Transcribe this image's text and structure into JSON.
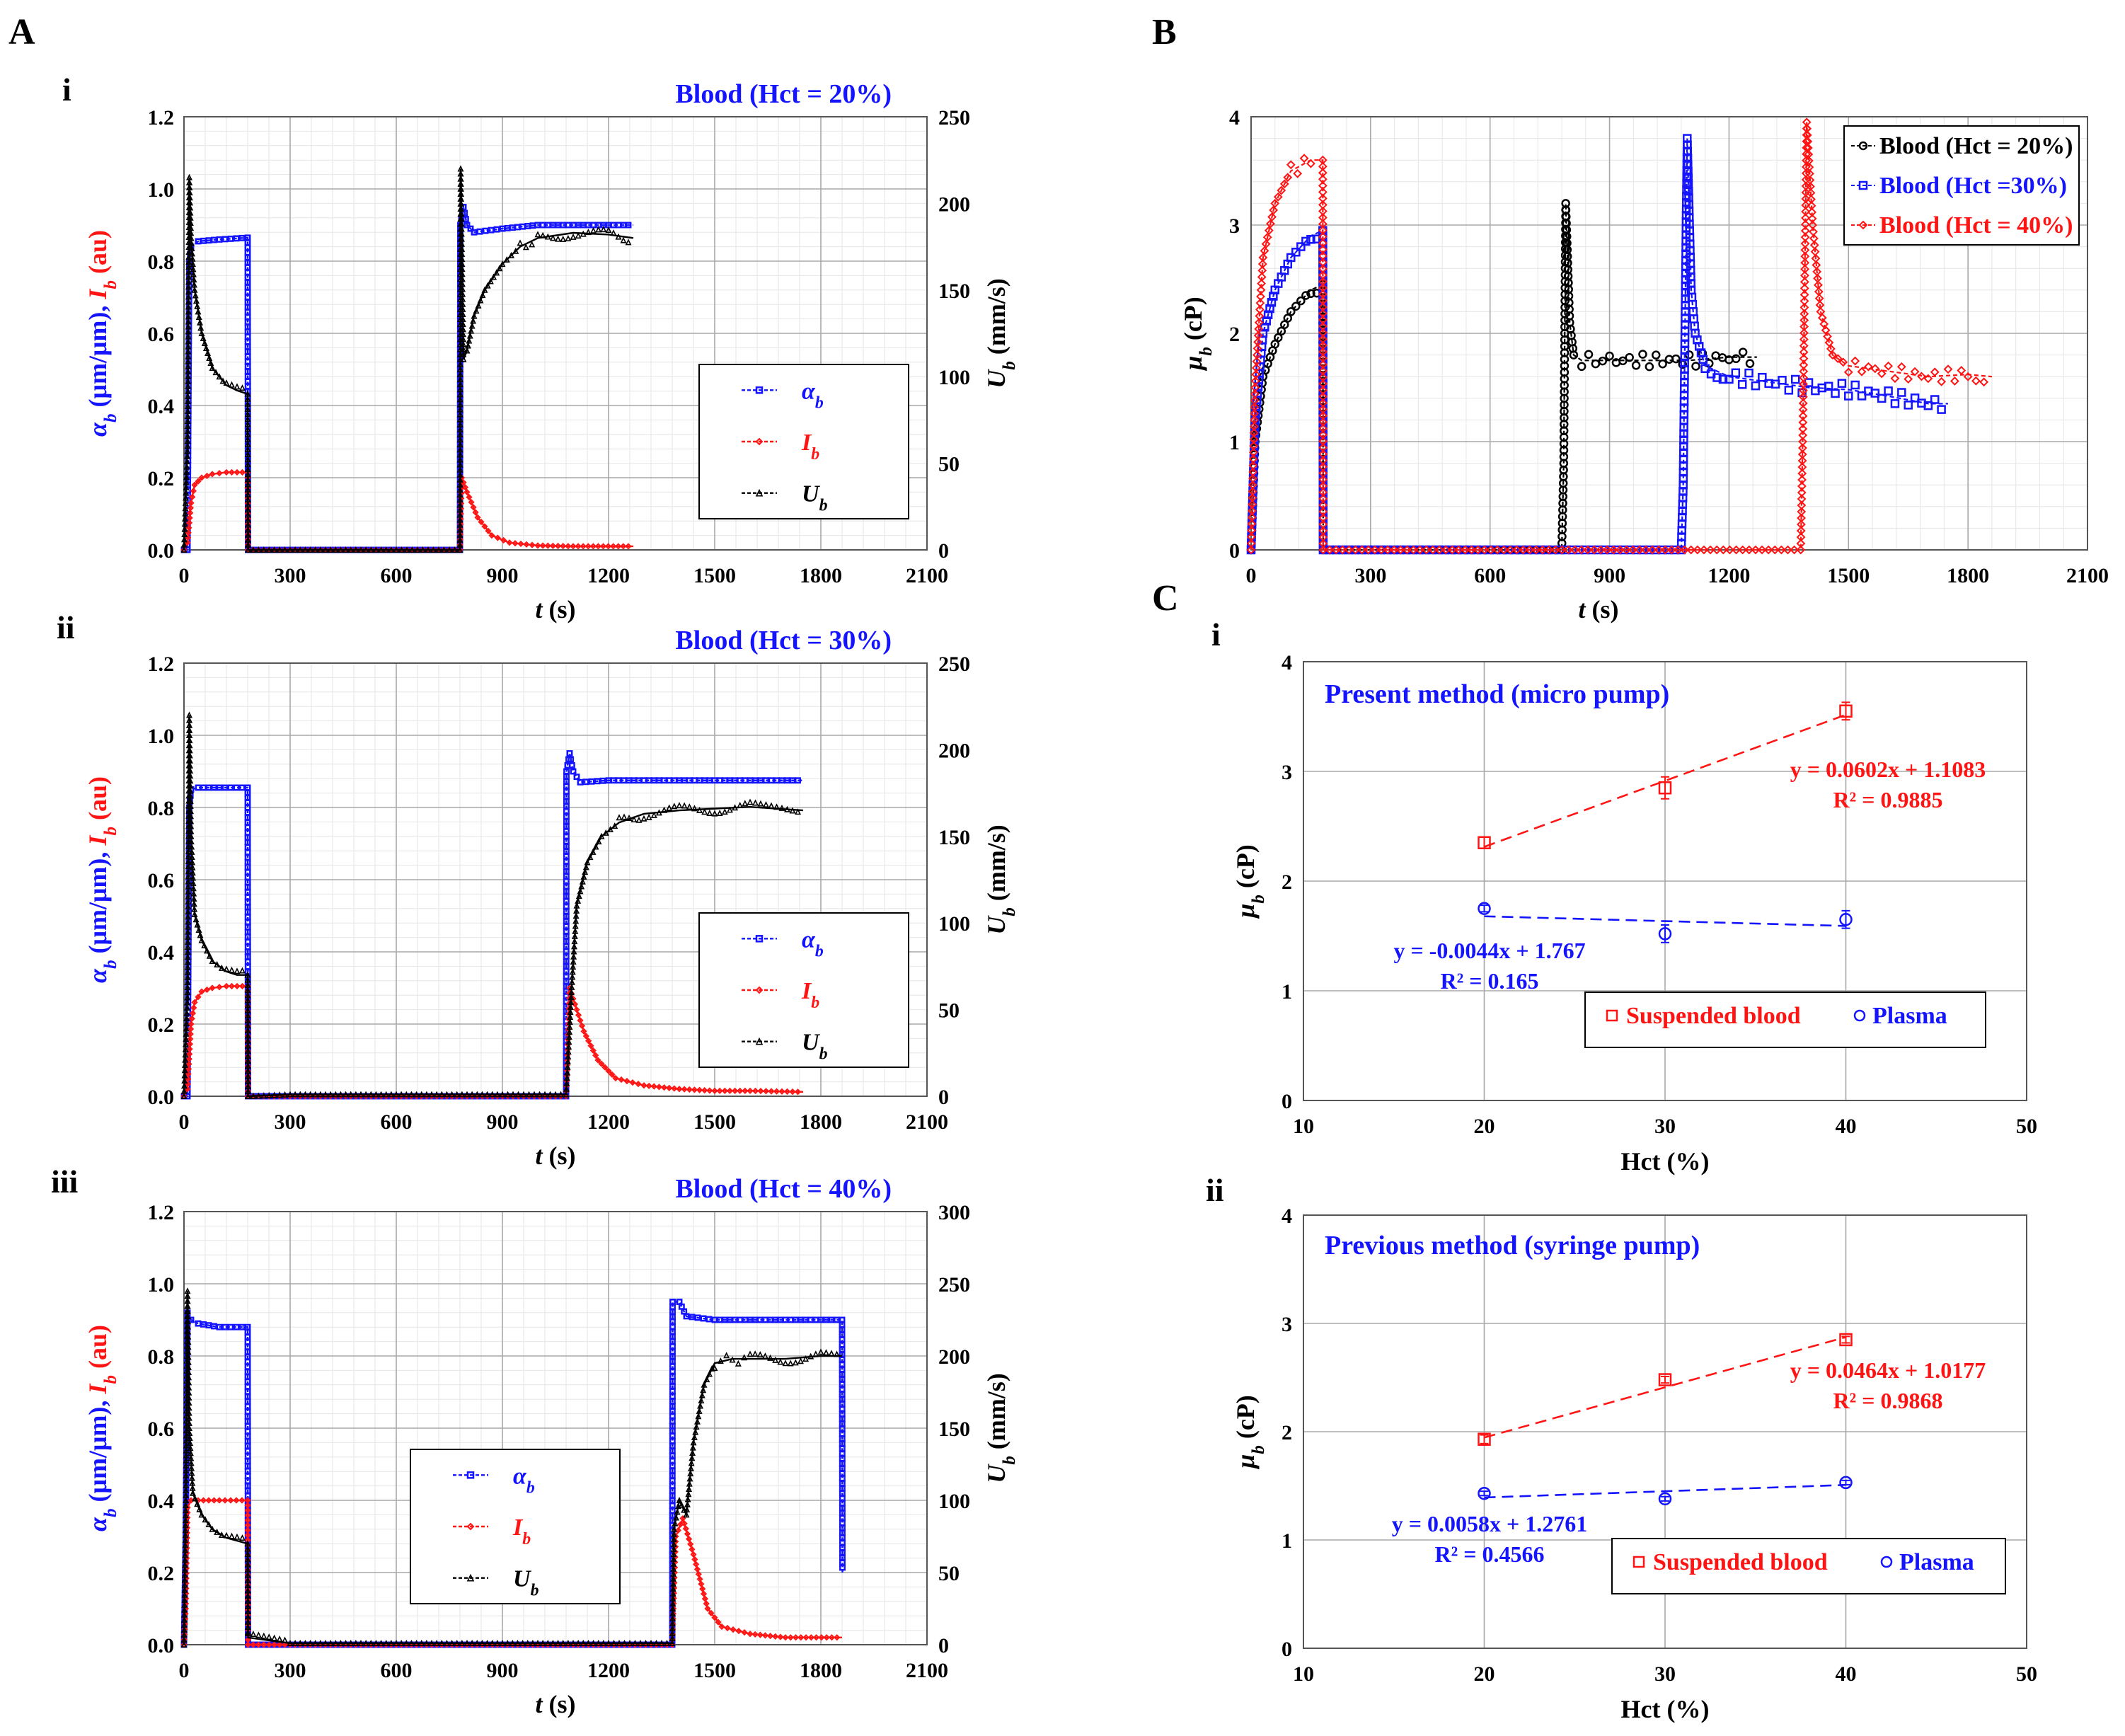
{
  "panel_letters": {
    "A": "A",
    "B": "B",
    "C": "C",
    "i": "i",
    "ii": "ii",
    "iii": "iii",
    "ci": "i",
    "cii": "ii"
  },
  "colors": {
    "blue": "#1414ff",
    "red": "#ff1414",
    "black": "#000000"
  },
  "chart_data": [
    {
      "id": "Ai",
      "type": "line",
      "title": "Blood (Hct = 20%)",
      "xlabel": "t (s)",
      "ylabel_left": "αb (μm/μm), Ib (au)",
      "ylabel_right": "Ub (mm/s)",
      "xlim": [
        0,
        2100
      ],
      "ylim_left": [
        0,
        1.2
      ],
      "ylim_right": [
        0,
        250
      ],
      "xticks": [
        "0",
        "300",
        "600",
        "900",
        "1200",
        "1500",
        "1800",
        "2100"
      ],
      "yticks_left": [
        "0.0",
        "0.2",
        "0.4",
        "0.6",
        "0.8",
        "1.0",
        "1.2"
      ],
      "yticks_right": [
        "0",
        "50",
        "100",
        "150",
        "200",
        "250"
      ],
      "legend": [
        "ab",
        "Ib",
        "Ub"
      ],
      "legend_loc": "center-right",
      "series": [
        {
          "name": "ab",
          "axis": "left",
          "color": "blue",
          "x": [
            0,
            10,
            15,
            20,
            40,
            100,
            180,
            181,
            300,
            600,
            780,
            781,
            790,
            800,
            820,
            900,
            1000,
            1100,
            1200,
            1270
          ],
          "y": [
            0,
            0,
            0.8,
            0.84,
            0.855,
            0.86,
            0.865,
            0,
            0,
            0,
            0,
            0.9,
            0.95,
            0.9,
            0.88,
            0.89,
            0.9,
            0.9,
            0.9,
            0.9
          ]
        },
        {
          "name": "Ib",
          "axis": "left",
          "color": "red",
          "x": [
            0,
            10,
            20,
            30,
            50,
            80,
            120,
            180,
            181,
            300,
            600,
            780,
            785,
            800,
            830,
            870,
            920,
            1000,
            1100,
            1270
          ],
          "y": [
            0,
            0.02,
            0.13,
            0.18,
            0.2,
            0.21,
            0.215,
            0.215,
            0,
            0,
            0,
            0,
            0.2,
            0.16,
            0.09,
            0.04,
            0.02,
            0.012,
            0.01,
            0.01
          ]
        },
        {
          "name": "Ub",
          "axis": "right",
          "color": "black",
          "x": [
            0,
            10,
            15,
            20,
            30,
            50,
            80,
            120,
            150,
            180,
            181,
            300,
            600,
            780,
            782,
            790,
            800,
            820,
            850,
            900,
            950,
            1000,
            1100,
            1200,
            1270
          ],
          "y": [
            0,
            60,
            215,
            180,
            150,
            125,
            105,
            95,
            92,
            90,
            0,
            0,
            0,
            0,
            220,
            110,
            115,
            135,
            150,
            165,
            175,
            180,
            183,
            182,
            180
          ]
        }
      ]
    },
    {
      "id": "Aii",
      "type": "line",
      "title": "Blood (Hct = 30%)",
      "xlabel": "t (s)",
      "ylabel_left": "αb (μm/μm), Ib (au)",
      "ylabel_right": "Ub (mm/s)",
      "xlim": [
        0,
        2100
      ],
      "ylim_left": [
        0,
        1.2
      ],
      "ylim_right": [
        0,
        250
      ],
      "xticks": [
        "0",
        "300",
        "600",
        "900",
        "1200",
        "1500",
        "1800",
        "2100"
      ],
      "yticks_left": [
        "0.0",
        "0.2",
        "0.4",
        "0.6",
        "0.8",
        "1.0",
        "1.2"
      ],
      "yticks_right": [
        "0",
        "50",
        "100",
        "150",
        "200",
        "250"
      ],
      "legend": [
        "ab",
        "Ib",
        "Ub"
      ],
      "legend_loc": "center-right",
      "series": [
        {
          "name": "ab",
          "axis": "left",
          "color": "blue",
          "x": [
            0,
            10,
            15,
            20,
            40,
            100,
            180,
            181,
            300,
            600,
            900,
            1080,
            1081,
            1090,
            1100,
            1120,
            1200,
            1300,
            1400,
            1500,
            1600,
            1750
          ],
          "y": [
            0,
            0,
            0.8,
            0.85,
            0.855,
            0.855,
            0.855,
            0,
            0,
            0,
            0,
            0,
            0.9,
            0.95,
            0.9,
            0.87,
            0.875,
            0.875,
            0.875,
            0.875,
            0.875,
            0.875
          ]
        },
        {
          "name": "Ib",
          "axis": "left",
          "color": "red",
          "x": [
            0,
            10,
            20,
            30,
            50,
            80,
            120,
            180,
            181,
            300,
            600,
            900,
            1080,
            1090,
            1100,
            1130,
            1170,
            1220,
            1300,
            1400,
            1500,
            1600,
            1750
          ],
          "y": [
            0,
            0.02,
            0.2,
            0.26,
            0.29,
            0.3,
            0.305,
            0.305,
            0,
            0,
            0,
            0,
            0,
            0.3,
            0.27,
            0.18,
            0.1,
            0.05,
            0.03,
            0.02,
            0.015,
            0.015,
            0.012
          ]
        },
        {
          "name": "Ub",
          "axis": "right",
          "color": "black",
          "x": [
            0,
            10,
            15,
            20,
            30,
            50,
            80,
            120,
            150,
            180,
            181,
            300,
            600,
            900,
            1080,
            1085,
            1095,
            1110,
            1140,
            1180,
            1230,
            1300,
            1400,
            1500,
            1600,
            1750
          ],
          "y": [
            0,
            60,
            220,
            150,
            105,
            90,
            78,
            72,
            70,
            70,
            0,
            1,
            1,
            1,
            1,
            20,
            60,
            110,
            135,
            150,
            158,
            163,
            165,
            166,
            167,
            165
          ]
        }
      ]
    },
    {
      "id": "Aiii",
      "type": "line",
      "title": "Blood (Hct = 40%)",
      "xlabel": "t (s)",
      "ylabel_left": "αb (μm/μm), Ib (au)",
      "ylabel_right": "Ub (mm/s)",
      "xlim": [
        0,
        2100
      ],
      "ylim_left": [
        0,
        1.2
      ],
      "ylim_right": [
        0,
        300
      ],
      "xticks": [
        "0",
        "300",
        "600",
        "900",
        "1200",
        "1500",
        "1800",
        "2100"
      ],
      "yticks_left": [
        "0.0",
        "0.2",
        "0.4",
        "0.6",
        "0.8",
        "1.0",
        "1.2"
      ],
      "yticks_right": [
        "0",
        "50",
        "100",
        "150",
        "200",
        "250",
        "300"
      ],
      "legend": [
        "ab",
        "Ib",
        "Ub"
      ],
      "legend_loc": "center-left",
      "series": [
        {
          "name": "ab",
          "axis": "left",
          "color": "blue",
          "x": [
            0,
            5,
            10,
            20,
            40,
            100,
            180,
            181,
            300,
            600,
            900,
            1200,
            1380,
            1381,
            1400,
            1420,
            1500,
            1600,
            1700,
            1800,
            1860,
            1861
          ],
          "y": [
            0,
            0.3,
            0.92,
            0.9,
            0.89,
            0.88,
            0.88,
            0,
            0,
            0,
            0,
            0,
            0,
            0.95,
            0.95,
            0.91,
            0.9,
            0.9,
            0.9,
            0.9,
            0.9,
            0.2
          ]
        },
        {
          "name": "Ib",
          "axis": "left",
          "color": "red",
          "x": [
            0,
            5,
            10,
            20,
            40,
            100,
            180,
            181,
            300,
            600,
            900,
            1200,
            1380,
            1390,
            1410,
            1440,
            1480,
            1520,
            1600,
            1700,
            1860
          ],
          "y": [
            0,
            0.1,
            0.38,
            0.4,
            0.4,
            0.4,
            0.4,
            0,
            0,
            0,
            0,
            0,
            0,
            0.3,
            0.35,
            0.25,
            0.1,
            0.05,
            0.03,
            0.02,
            0.02
          ]
        },
        {
          "name": "Ub",
          "axis": "right",
          "color": "black",
          "x": [
            0,
            5,
            10,
            15,
            25,
            50,
            80,
            120,
            150,
            180,
            181,
            300,
            600,
            900,
            1200,
            1380,
            1385,
            1400,
            1420,
            1440,
            1470,
            1500,
            1550,
            1600,
            1700,
            1800,
            1860
          ],
          "y": [
            0,
            100,
            245,
            150,
            105,
            90,
            80,
            74,
            72,
            70,
            5,
            1,
            1,
            1,
            1,
            1,
            80,
            100,
            90,
            140,
            180,
            195,
            198,
            198,
            198,
            200,
            200
          ]
        }
      ]
    },
    {
      "id": "B",
      "type": "line",
      "title": "",
      "xlabel": "t (s)",
      "ylabel": "μb (cP)",
      "xlim": [
        0,
        2100
      ],
      "ylim": [
        0,
        4
      ],
      "xticks": [
        "0",
        "300",
        "600",
        "900",
        "1200",
        "1500",
        "1800",
        "2100"
      ],
      "yticks": [
        "0",
        "1",
        "2",
        "3",
        "4"
      ],
      "legend": [
        "Blood (Hct = 20%)",
        "Blood (Hct =30%)",
        "Blood (Hct = 40%)"
      ],
      "legend_loc": "top-right",
      "series": [
        {
          "name": "Blood (Hct = 20%)",
          "color": "black",
          "x": [
            0,
            10,
            30,
            60,
            100,
            150,
            180,
            181,
            780,
            785,
            790,
            800,
            810,
            830,
            900,
            1000,
            1100,
            1200,
            1270
          ],
          "y": [
            0,
            1.0,
            1.6,
            1.9,
            2.2,
            2.4,
            2.45,
            0,
            0,
            0.8,
            3.2,
            2.1,
            1.8,
            1.75,
            1.75,
            1.75,
            1.75,
            1.78,
            1.78
          ]
        },
        {
          "name": "Blood (Hct =30%)",
          "color": "blue",
          "x": [
            0,
            10,
            30,
            60,
            100,
            150,
            180,
            181,
            1080,
            1085,
            1095,
            1105,
            1115,
            1140,
            1200,
            1300,
            1400,
            1500,
            1600,
            1700,
            1750
          ],
          "y": [
            0,
            1.2,
            2.0,
            2.4,
            2.7,
            2.9,
            2.95,
            0,
            0,
            0.6,
            3.8,
            2.4,
            2.0,
            1.7,
            1.6,
            1.55,
            1.5,
            1.48,
            1.42,
            1.35,
            1.35
          ]
        },
        {
          "name": "Blood (Hct = 40%)",
          "color": "red",
          "x": [
            0,
            10,
            30,
            60,
            100,
            150,
            180,
            181,
            1380,
            1385,
            1395,
            1410,
            1430,
            1460,
            1500,
            1600,
            1700,
            1800,
            1860
          ],
          "y": [
            0,
            1.5,
            2.7,
            3.2,
            3.5,
            3.6,
            3.6,
            0,
            0,
            1.0,
            3.95,
            3.0,
            2.2,
            1.8,
            1.7,
            1.65,
            1.6,
            1.62,
            1.6
          ]
        }
      ]
    },
    {
      "id": "Ci",
      "type": "scatter",
      "title": "Present method (micro pump)",
      "xlabel": "Hct (%)",
      "ylabel": "μb (cP)",
      "xlim": [
        10,
        50
      ],
      "ylim": [
        0,
        4
      ],
      "xticks": [
        "10",
        "20",
        "30",
        "40",
        "50"
      ],
      "yticks": [
        "0",
        "1",
        "2",
        "3",
        "4"
      ],
      "legend": [
        "Suspended blood",
        "Plasma"
      ],
      "legend_loc": "bottom-right",
      "series": [
        {
          "name": "Suspended blood",
          "color": "red",
          "marker": "square",
          "x": [
            20,
            30,
            40
          ],
          "y": [
            2.35,
            2.85,
            3.55
          ],
          "err": [
            0.05,
            0.1,
            0.08
          ],
          "fit": [
            0.0602,
            1.1083
          ]
        },
        {
          "name": "Plasma",
          "color": "blue",
          "marker": "circle",
          "x": [
            20,
            30,
            40
          ],
          "y": [
            1.75,
            1.52,
            1.65
          ],
          "err": [
            0.03,
            0.08,
            0.08
          ],
          "fit": [
            -0.0044,
            1.767
          ]
        }
      ],
      "annotations": [
        {
          "text": "y = 0.0602x + 1.1083",
          "color": "red"
        },
        {
          "text": "R² = 0.9885",
          "color": "red"
        },
        {
          "text": "y = -0.0044x + 1.767",
          "color": "blue"
        },
        {
          "text": "R² = 0.165",
          "color": "blue"
        }
      ]
    },
    {
      "id": "Cii",
      "type": "scatter",
      "title": "Previous method (syringe pump)",
      "xlabel": "Hct (%)",
      "ylabel": "μb (cP)",
      "xlim": [
        10,
        50
      ],
      "ylim": [
        0,
        4
      ],
      "xticks": [
        "10",
        "20",
        "30",
        "40",
        "50"
      ],
      "yticks": [
        "0",
        "1",
        "2",
        "3",
        "4"
      ],
      "legend": [
        "Suspended blood",
        "Plasma"
      ],
      "legend_loc": "bottom-right",
      "series": [
        {
          "name": "Suspended blood",
          "color": "red",
          "marker": "square",
          "x": [
            20,
            30,
            40
          ],
          "y": [
            1.93,
            2.48,
            2.85
          ],
          "err": [
            0.04,
            0.03,
            0.03
          ],
          "fit": [
            0.0464,
            1.0177
          ]
        },
        {
          "name": "Plasma",
          "color": "blue",
          "marker": "circle",
          "x": [
            20,
            30,
            40
          ],
          "y": [
            1.43,
            1.38,
            1.53
          ],
          "err": [
            0.02,
            0.02,
            0.02
          ],
          "fit": [
            0.0058,
            1.2761
          ]
        }
      ],
      "annotations": [
        {
          "text": "y = 0.0464x + 1.0177",
          "color": "red"
        },
        {
          "text": "R² = 0.9868",
          "color": "red"
        },
        {
          "text": "y = 0.0058x + 1.2761",
          "color": "blue"
        },
        {
          "text": "R² = 0.4566",
          "color": "blue"
        }
      ]
    }
  ]
}
